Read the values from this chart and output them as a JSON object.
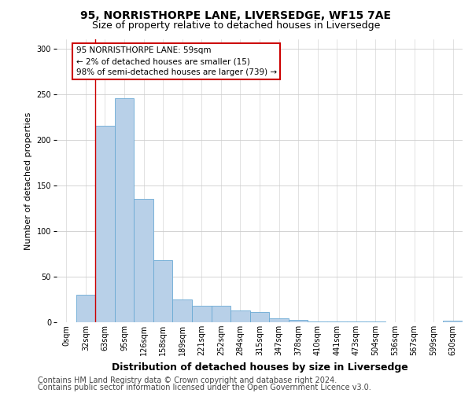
{
  "title1": "95, NORRISTHORPE LANE, LIVERSEDGE, WF15 7AE",
  "title2": "Size of property relative to detached houses in Liversedge",
  "xlabel": "Distribution of detached houses by size in Liversedge",
  "ylabel": "Number of detached properties",
  "categories": [
    "0sqm",
    "32sqm",
    "63sqm",
    "95sqm",
    "126sqm",
    "158sqm",
    "189sqm",
    "221sqm",
    "252sqm",
    "284sqm",
    "315sqm",
    "347sqm",
    "378sqm",
    "410sqm",
    "441sqm",
    "473sqm",
    "504sqm",
    "536sqm",
    "567sqm",
    "599sqm",
    "630sqm"
  ],
  "values": [
    0,
    30,
    215,
    245,
    135,
    68,
    25,
    18,
    18,
    13,
    11,
    4,
    3,
    1,
    1,
    1,
    1,
    0,
    0,
    0,
    2
  ],
  "bar_color": "#b8d0e8",
  "bar_edge_color": "#6aaad4",
  "red_line_x": 1.5,
  "annotation_line1": "95 NORRISTHORPE LANE: 59sqm",
  "annotation_line2": "← 2% of detached houses are smaller (15)",
  "annotation_line3": "98% of semi-detached houses are larger (739) →",
  "annotation_box_color": "#ffffff",
  "annotation_box_edge_color": "#cc0000",
  "footer1": "Contains HM Land Registry data © Crown copyright and database right 2024.",
  "footer2": "Contains public sector information licensed under the Open Government Licence v3.0.",
  "ylim": [
    0,
    310
  ],
  "yticks": [
    0,
    50,
    100,
    150,
    200,
    250,
    300
  ],
  "bg_color": "#ffffff",
  "grid_color": "#cccccc",
  "title1_fontsize": 10,
  "title2_fontsize": 9,
  "xlabel_fontsize": 9,
  "ylabel_fontsize": 8,
  "tick_fontsize": 7,
  "annotation_fontsize": 7.5,
  "footer_fontsize": 7
}
